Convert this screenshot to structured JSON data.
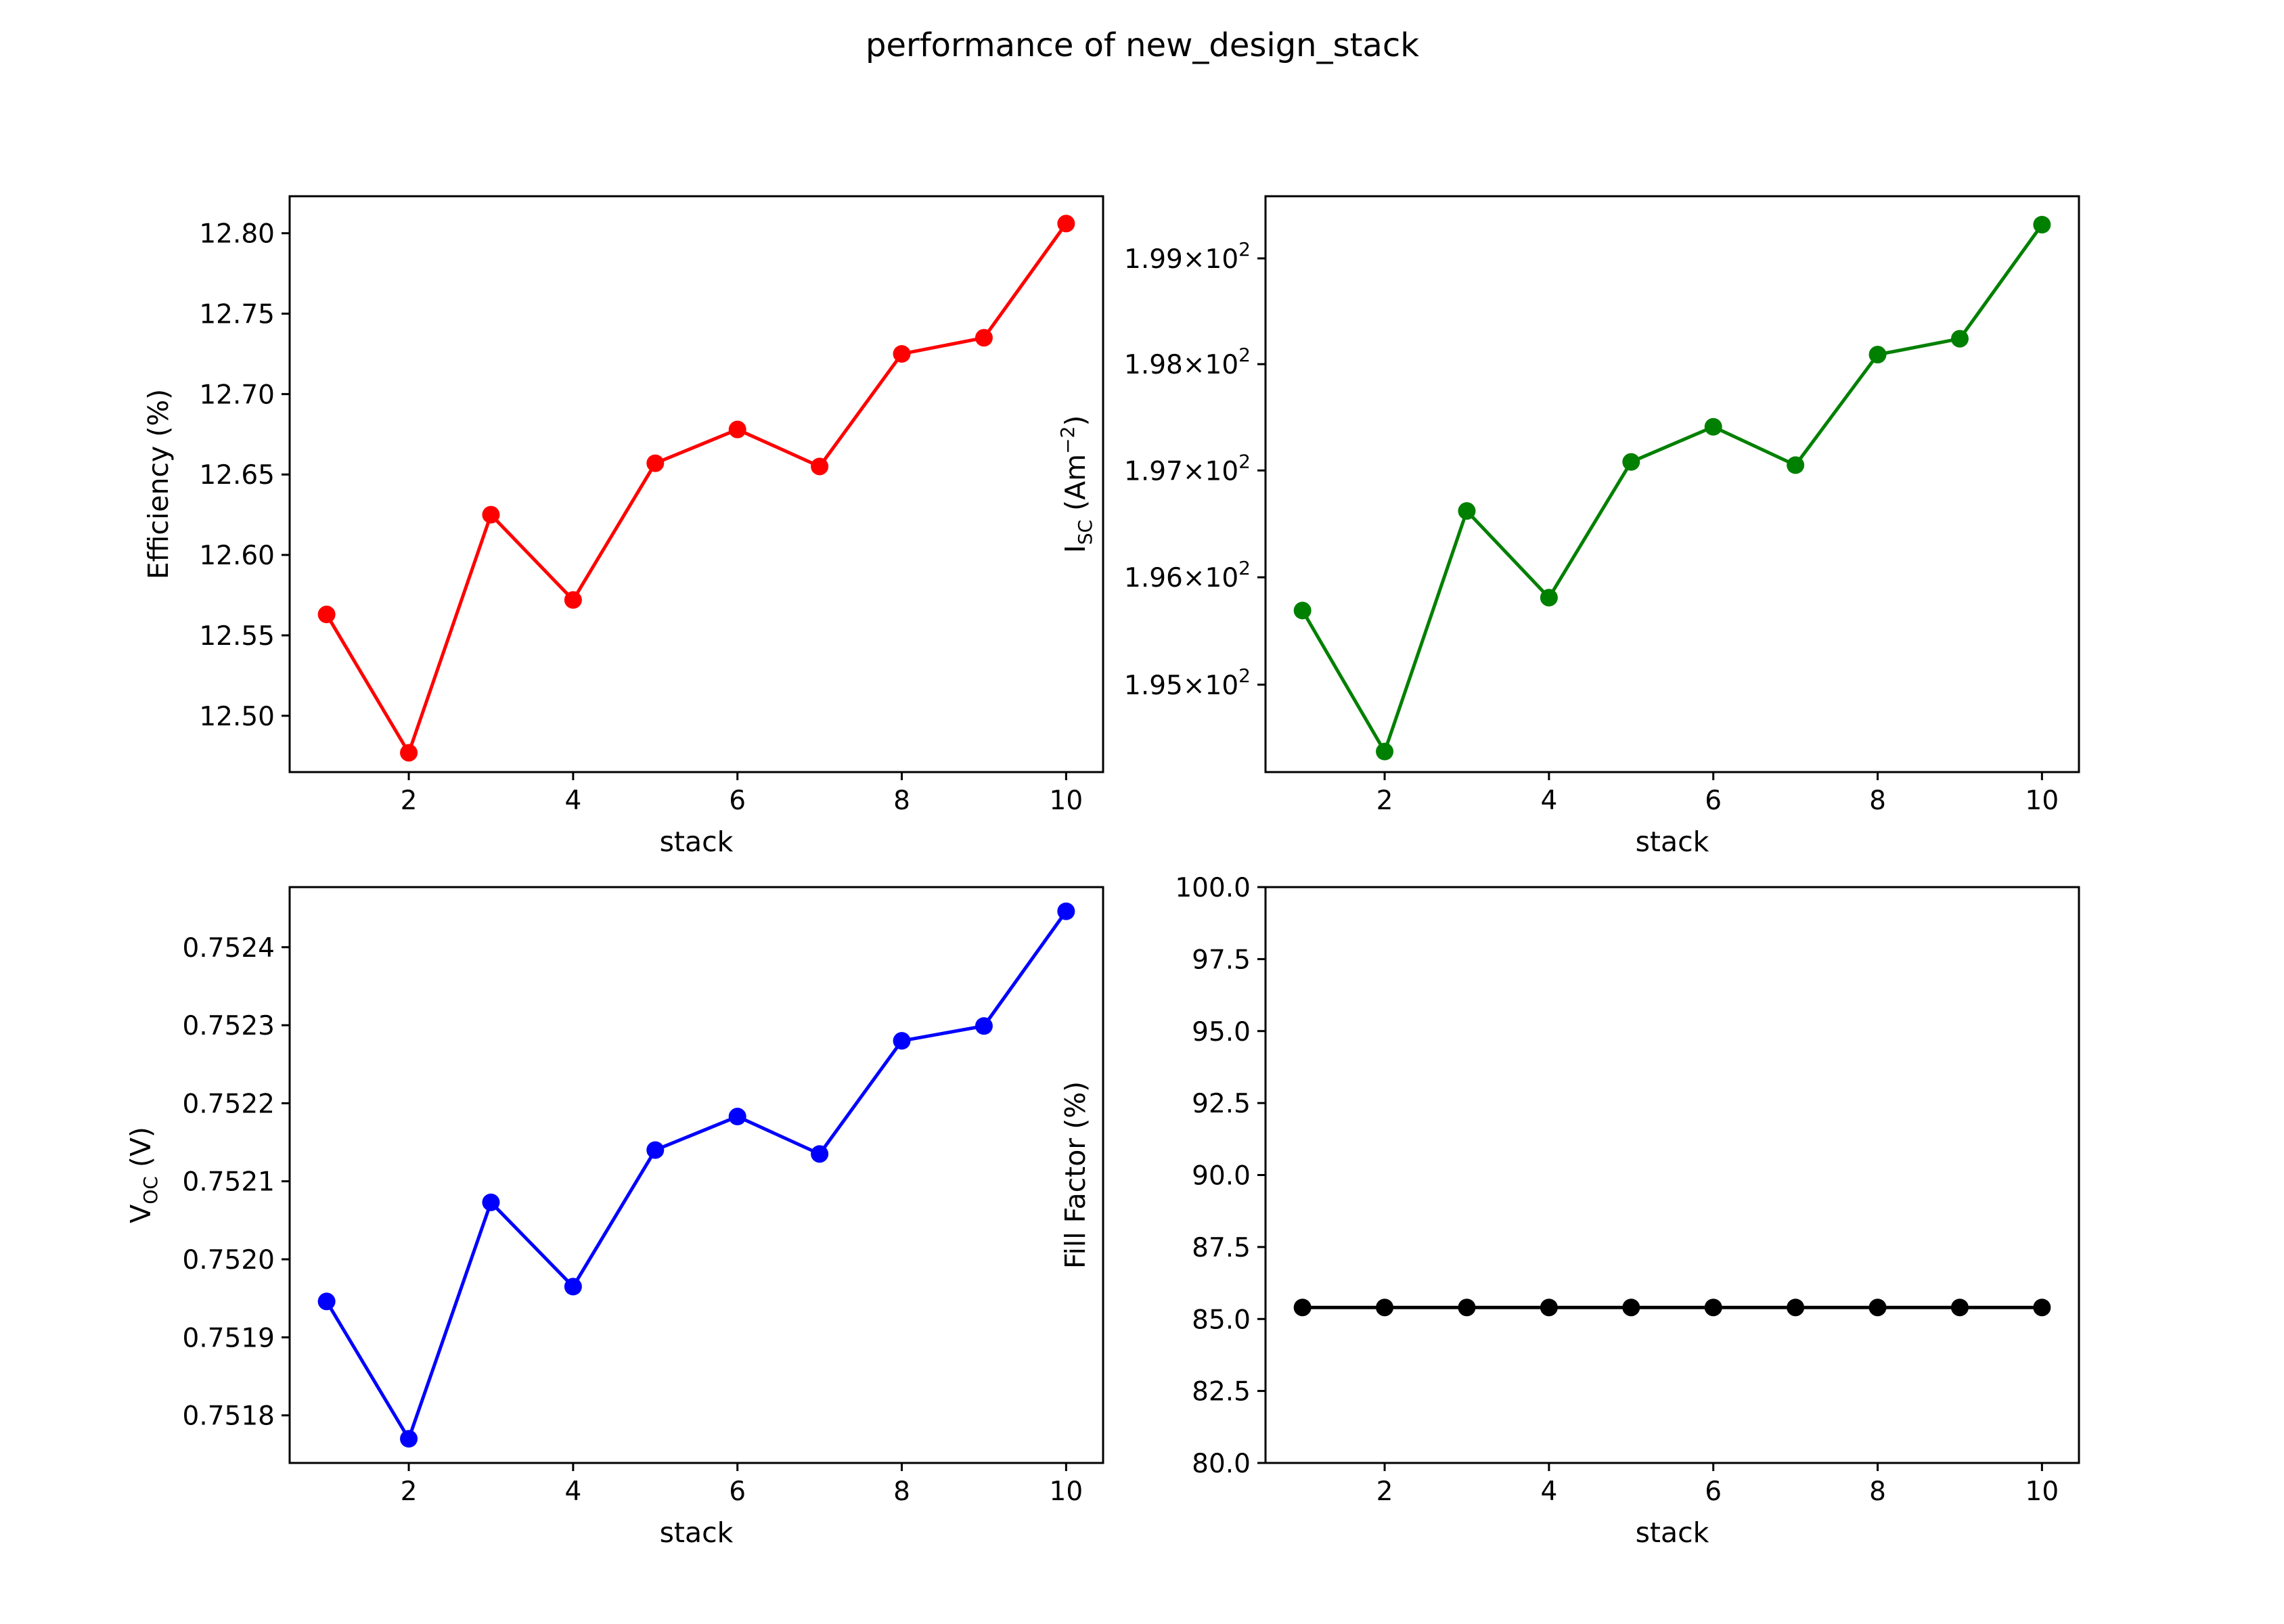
{
  "figure": {
    "title": "performance of new_design_stack"
  },
  "chart_data": [
    {
      "type": "line",
      "position": "top-left",
      "color": "#ff0000",
      "xlabel": "stack",
      "ylabel": "Efficiency (%)",
      "x": [
        1,
        2,
        3,
        4,
        5,
        6,
        7,
        8,
        9,
        10
      ],
      "y": [
        12.563,
        12.477,
        12.625,
        12.572,
        12.657,
        12.678,
        12.655,
        12.725,
        12.735,
        12.806
      ],
      "xlim": [
        0.55,
        10.45
      ],
      "ylim": [
        12.465,
        12.823
      ],
      "xticks": [
        2,
        4,
        6,
        8,
        10
      ],
      "xtick_labels": [
        "2",
        "4",
        "6",
        "8",
        "10"
      ],
      "yticks": [
        12.5,
        12.55,
        12.6,
        12.65,
        12.7,
        12.75,
        12.8
      ],
      "ytick_labels": [
        "12.50",
        "12.55",
        "12.60",
        "12.65",
        "12.70",
        "12.75",
        "12.80"
      ]
    },
    {
      "type": "line",
      "position": "top-right",
      "color": "#008000",
      "yscale": "log",
      "xlabel": "stack",
      "ylabel": {
        "base": "I",
        "sub": "SC",
        "tail": " (Am",
        "sup": "−2",
        "end": ")"
      },
      "x": [
        1,
        2,
        3,
        4,
        5,
        6,
        7,
        8,
        9,
        10
      ],
      "y": [
        195.69,
        194.38,
        196.62,
        195.81,
        197.08,
        197.41,
        197.05,
        198.09,
        198.24,
        199.32
      ],
      "xlim": [
        0.55,
        10.45
      ],
      "ylim": [
        194.19,
        199.59
      ],
      "xticks": [
        2,
        4,
        6,
        8,
        10
      ],
      "xtick_labels": [
        "2",
        "4",
        "6",
        "8",
        "10"
      ],
      "yticks": [
        195,
        196,
        197,
        198,
        199
      ],
      "ytick_labels": [
        {
          "mant": "1.95",
          "times": "×",
          "base": "10",
          "exp": "2"
        },
        {
          "mant": "1.96",
          "times": "×",
          "base": "10",
          "exp": "2"
        },
        {
          "mant": "1.97",
          "times": "×",
          "base": "10",
          "exp": "2"
        },
        {
          "mant": "1.98",
          "times": "×",
          "base": "10",
          "exp": "2"
        },
        {
          "mant": "1.99",
          "times": "×",
          "base": "10",
          "exp": "2"
        }
      ]
    },
    {
      "type": "line",
      "position": "bottom-left",
      "color": "#0000ff",
      "xlabel": "stack",
      "ylabel": {
        "base": "V",
        "sub": "OC",
        "tail": " (V)"
      },
      "x": [
        1,
        2,
        3,
        4,
        5,
        6,
        7,
        8,
        9,
        10
      ],
      "y": [
        0.751946,
        0.75177,
        0.752073,
        0.751965,
        0.75214,
        0.752183,
        0.752135,
        0.75228,
        0.752299,
        0.752446
      ],
      "xlim": [
        0.55,
        10.45
      ],
      "ylim": [
        0.751739,
        0.752477
      ],
      "xticks": [
        2,
        4,
        6,
        8,
        10
      ],
      "xtick_labels": [
        "2",
        "4",
        "6",
        "8",
        "10"
      ],
      "yticks": [
        0.7518,
        0.7519,
        0.752,
        0.7521,
        0.7522,
        0.7523,
        0.7524
      ],
      "ytick_labels": [
        "0.7518",
        "0.7519",
        "0.7520",
        "0.7521",
        "0.7522",
        "0.7523",
        "0.7524"
      ]
    },
    {
      "type": "line",
      "position": "bottom-right",
      "color": "#000000",
      "xlabel": "stack",
      "ylabel": "Fill Factor (%)",
      "x": [
        1,
        2,
        3,
        4,
        5,
        6,
        7,
        8,
        9,
        10
      ],
      "y": [
        85.4,
        85.4,
        85.4,
        85.4,
        85.4,
        85.4,
        85.4,
        85.4,
        85.4,
        85.4
      ],
      "xlim": [
        0.55,
        10.45
      ],
      "ylim": [
        80,
        100
      ],
      "xticks": [
        2,
        4,
        6,
        8,
        10
      ],
      "xtick_labels": [
        "2",
        "4",
        "6",
        "8",
        "10"
      ],
      "yticks": [
        80,
        82.5,
        85,
        87.5,
        90,
        92.5,
        95,
        97.5,
        100
      ],
      "ytick_labels": [
        "80.0",
        "82.5",
        "85.0",
        "87.5",
        "90.0",
        "92.5",
        "95.0",
        "97.5",
        "100.0"
      ]
    }
  ]
}
